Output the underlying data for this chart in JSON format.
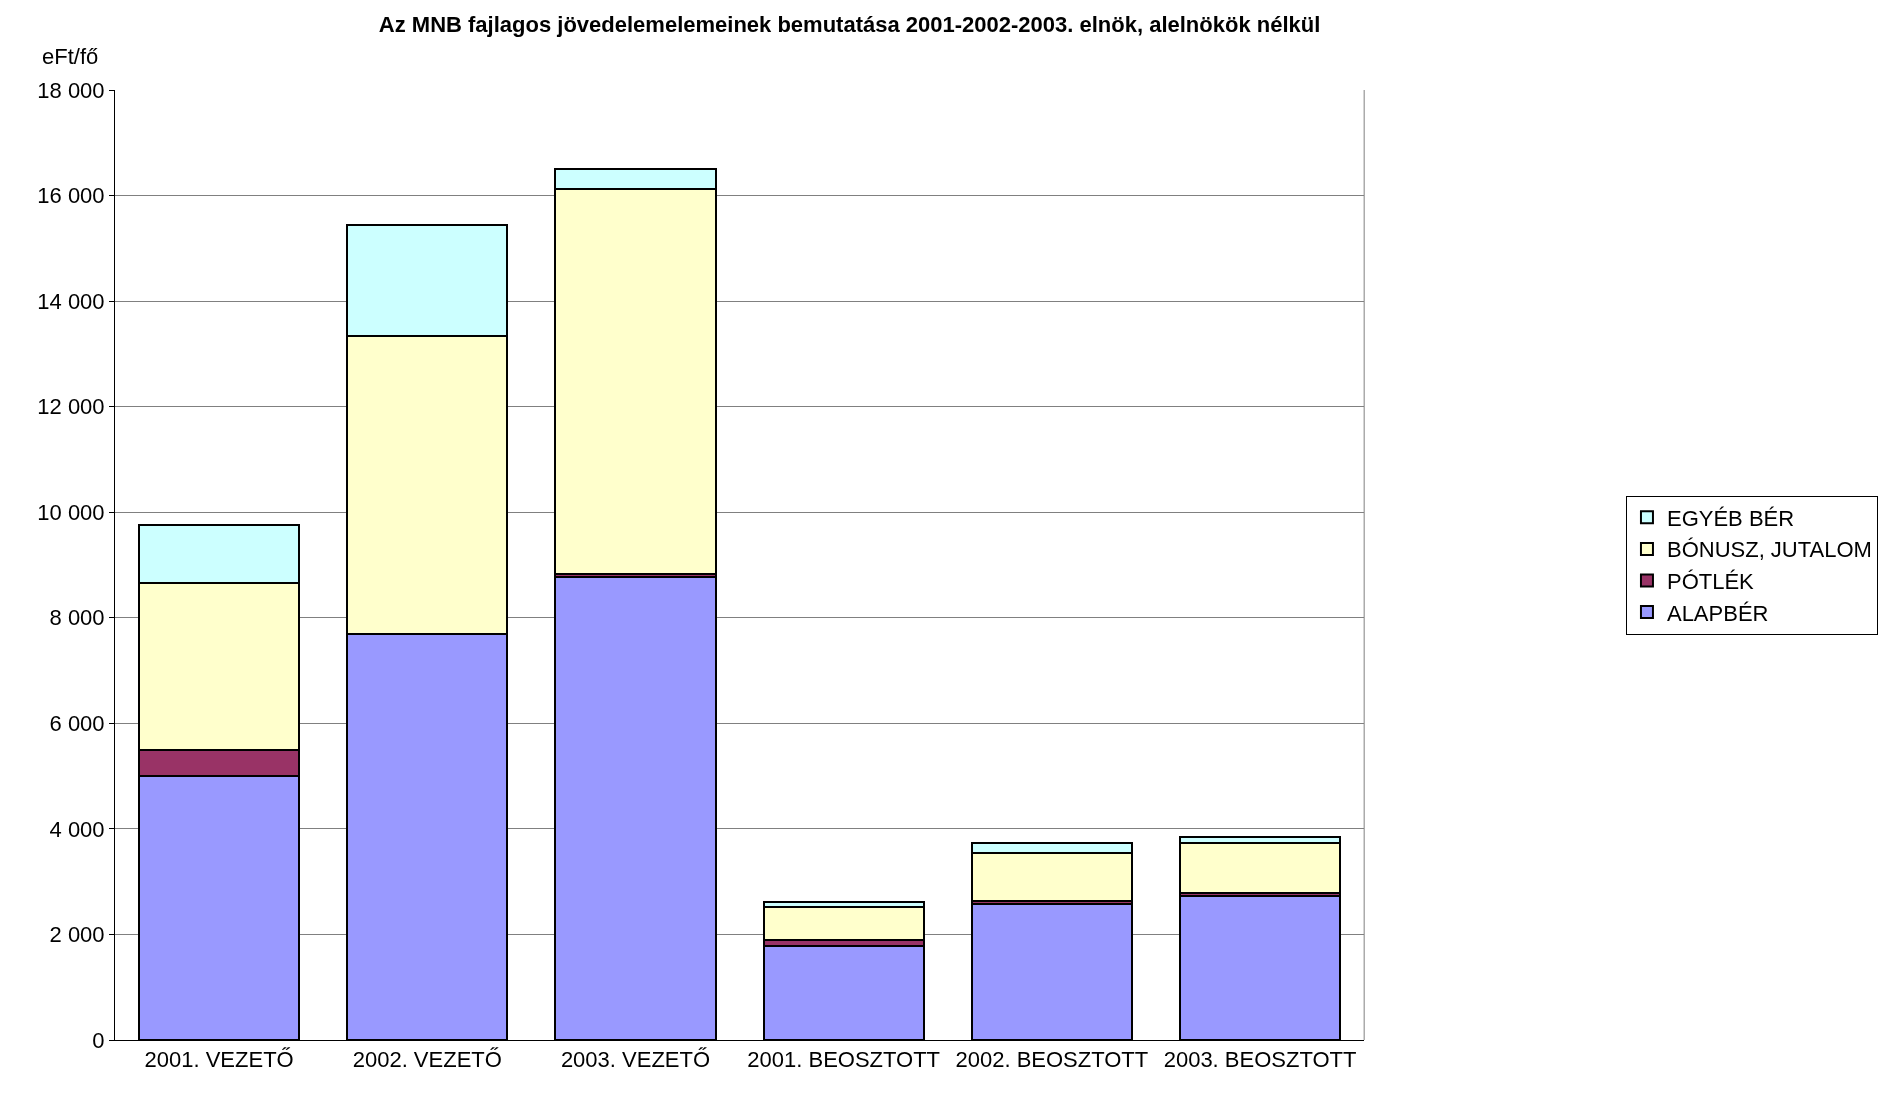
{
  "chart_data": {
    "type": "bar",
    "stacked": true,
    "title": "Az MNB fajlagos jövedelemelemeinek bemutatása 2001-2002-2003. elnök, alelnökök nélkül",
    "ylabel": "eFt/fő",
    "categories": [
      "2001. VEZETŐ",
      "2002. VEZETŐ",
      "2003. VEZETŐ",
      "2001. BEOSZTOTT",
      "2002. BEOSZTOTT",
      "2003. BEOSZTOTT"
    ],
    "series": [
      {
        "name": "ALAPBÉR",
        "color": "#9999ff",
        "values": [
          5000,
          7700,
          8780,
          1790,
          2580,
          2720
        ]
      },
      {
        "name": "PÓTLÉK",
        "color": "#993366",
        "values": [
          500,
          0,
          50,
          110,
          50,
          60
        ]
      },
      {
        "name": "BÓNUSZ, JUTALOM",
        "color": "#ffffcc",
        "values": [
          3150,
          5630,
          7300,
          620,
          910,
          960
        ]
      },
      {
        "name": "EGYÉB BÉR",
        "color": "#ccffff",
        "values": [
          1100,
          2120,
          370,
          90,
          200,
          110
        ]
      }
    ],
    "ylim": [
      0,
      18000
    ],
    "yticks": [
      0,
      {
        "value": 2000,
        "label": "2 000"
      },
      {
        "value": 4000,
        "label": "4 000"
      },
      {
        "value": 6000,
        "label": "6 000"
      },
      {
        "value": 8000,
        "label": "8 000"
      },
      {
        "value": 10000,
        "label": "10 000"
      },
      {
        "value": 12000,
        "label": "12 000"
      },
      {
        "value": 14000,
        "label": "14 000"
      },
      {
        "value": 16000,
        "label": "16 000"
      },
      {
        "value": 18000,
        "label": "18 000"
      }
    ],
    "grid": "y",
    "legend": "right"
  }
}
